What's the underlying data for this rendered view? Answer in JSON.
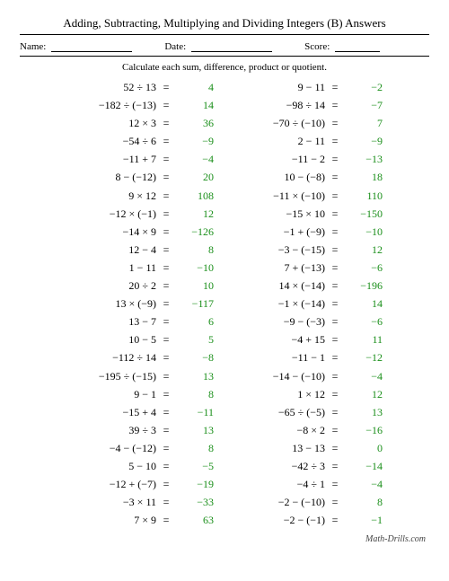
{
  "title": "Adding, Subtracting, Multiplying and Dividing Integers (B) Answers",
  "meta": {
    "name_label": "Name:",
    "date_label": "Date:",
    "score_label": "Score:"
  },
  "instruction": "Calculate each sum, difference, product or quotient.",
  "footer": "Math-Drills.com",
  "colors": {
    "answer": "#1a8f1a",
    "text": "#000000",
    "bg": "#ffffff"
  },
  "columns": [
    [
      {
        "expr": "52 ÷ 13",
        "ans": "4"
      },
      {
        "expr": "−182 ÷ (−13)",
        "ans": "14"
      },
      {
        "expr": "12 × 3",
        "ans": "36"
      },
      {
        "expr": "−54 ÷ 6",
        "ans": "−9"
      },
      {
        "expr": "−11 + 7",
        "ans": "−4"
      },
      {
        "expr": "8 − (−12)",
        "ans": "20"
      },
      {
        "expr": "9 × 12",
        "ans": "108"
      },
      {
        "expr": "−12 × (−1)",
        "ans": "12"
      },
      {
        "expr": "−14 × 9",
        "ans": "−126"
      },
      {
        "expr": "12 − 4",
        "ans": "8"
      },
      {
        "expr": "1 − 11",
        "ans": "−10"
      },
      {
        "expr": "20 ÷ 2",
        "ans": "10"
      },
      {
        "expr": "13 × (−9)",
        "ans": "−117"
      },
      {
        "expr": "13 − 7",
        "ans": "6"
      },
      {
        "expr": "10 − 5",
        "ans": "5"
      },
      {
        "expr": "−112 ÷ 14",
        "ans": "−8"
      },
      {
        "expr": "−195 ÷ (−15)",
        "ans": "13"
      },
      {
        "expr": "9 − 1",
        "ans": "8"
      },
      {
        "expr": "−15 + 4",
        "ans": "−11"
      },
      {
        "expr": "39 ÷ 3",
        "ans": "13"
      },
      {
        "expr": "−4 − (−12)",
        "ans": "8"
      },
      {
        "expr": "5 − 10",
        "ans": "−5"
      },
      {
        "expr": "−12 + (−7)",
        "ans": "−19"
      },
      {
        "expr": "−3 × 11",
        "ans": "−33"
      },
      {
        "expr": "7 × 9",
        "ans": "63"
      }
    ],
    [
      {
        "expr": "9 − 11",
        "ans": "−2"
      },
      {
        "expr": "−98 ÷ 14",
        "ans": "−7"
      },
      {
        "expr": "−70 ÷ (−10)",
        "ans": "7"
      },
      {
        "expr": "2 − 11",
        "ans": "−9"
      },
      {
        "expr": "−11 − 2",
        "ans": "−13"
      },
      {
        "expr": "10 − (−8)",
        "ans": "18"
      },
      {
        "expr": "−11 × (−10)",
        "ans": "110"
      },
      {
        "expr": "−15 × 10",
        "ans": "−150"
      },
      {
        "expr": "−1 + (−9)",
        "ans": "−10"
      },
      {
        "expr": "−3 − (−15)",
        "ans": "12"
      },
      {
        "expr": "7 + (−13)",
        "ans": "−6"
      },
      {
        "expr": "14 × (−14)",
        "ans": "−196"
      },
      {
        "expr": "−1 × (−14)",
        "ans": "14"
      },
      {
        "expr": "−9 − (−3)",
        "ans": "−6"
      },
      {
        "expr": "−4 + 15",
        "ans": "11"
      },
      {
        "expr": "−11 − 1",
        "ans": "−12"
      },
      {
        "expr": "−14 − (−10)",
        "ans": "−4"
      },
      {
        "expr": "1 × 12",
        "ans": "12"
      },
      {
        "expr": "−65 ÷ (−5)",
        "ans": "13"
      },
      {
        "expr": "−8 × 2",
        "ans": "−16"
      },
      {
        "expr": "13 − 13",
        "ans": "0"
      },
      {
        "expr": "−42 ÷ 3",
        "ans": "−14"
      },
      {
        "expr": "−4 ÷ 1",
        "ans": "−4"
      },
      {
        "expr": "−2 − (−10)",
        "ans": "8"
      },
      {
        "expr": "−2 − (−1)",
        "ans": "−1"
      }
    ]
  ]
}
